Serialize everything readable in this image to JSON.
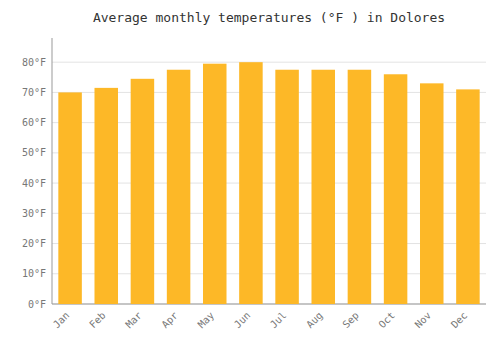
{
  "chart_data": {
    "type": "bar",
    "title": "Average monthly temperatures (°F ) in Dolores",
    "categories": [
      "Jan",
      "Feb",
      "Mar",
      "Apr",
      "May",
      "Jun",
      "Jul",
      "Aug",
      "Sep",
      "Oct",
      "Nov",
      "Dec"
    ],
    "values": [
      70.0,
      71.5,
      74.5,
      77.5,
      79.5,
      80.0,
      77.5,
      77.5,
      77.5,
      76.0,
      73.0,
      71.0
    ],
    "color": "#FDB827",
    "ylim": [
      0,
      88
    ],
    "yticks": [
      {
        "value": 0,
        "label": "0°F"
      },
      {
        "value": 10,
        "label": "10°F"
      },
      {
        "value": 20,
        "label": "20°F"
      },
      {
        "value": 30,
        "label": "30°F"
      },
      {
        "value": 40,
        "label": "40°F"
      },
      {
        "value": 50,
        "label": "50°F"
      },
      {
        "value": 60,
        "label": "60°F"
      },
      {
        "value": 70,
        "label": "70°F"
      },
      {
        "value": 80,
        "label": "80°F"
      }
    ],
    "grid": true
  }
}
